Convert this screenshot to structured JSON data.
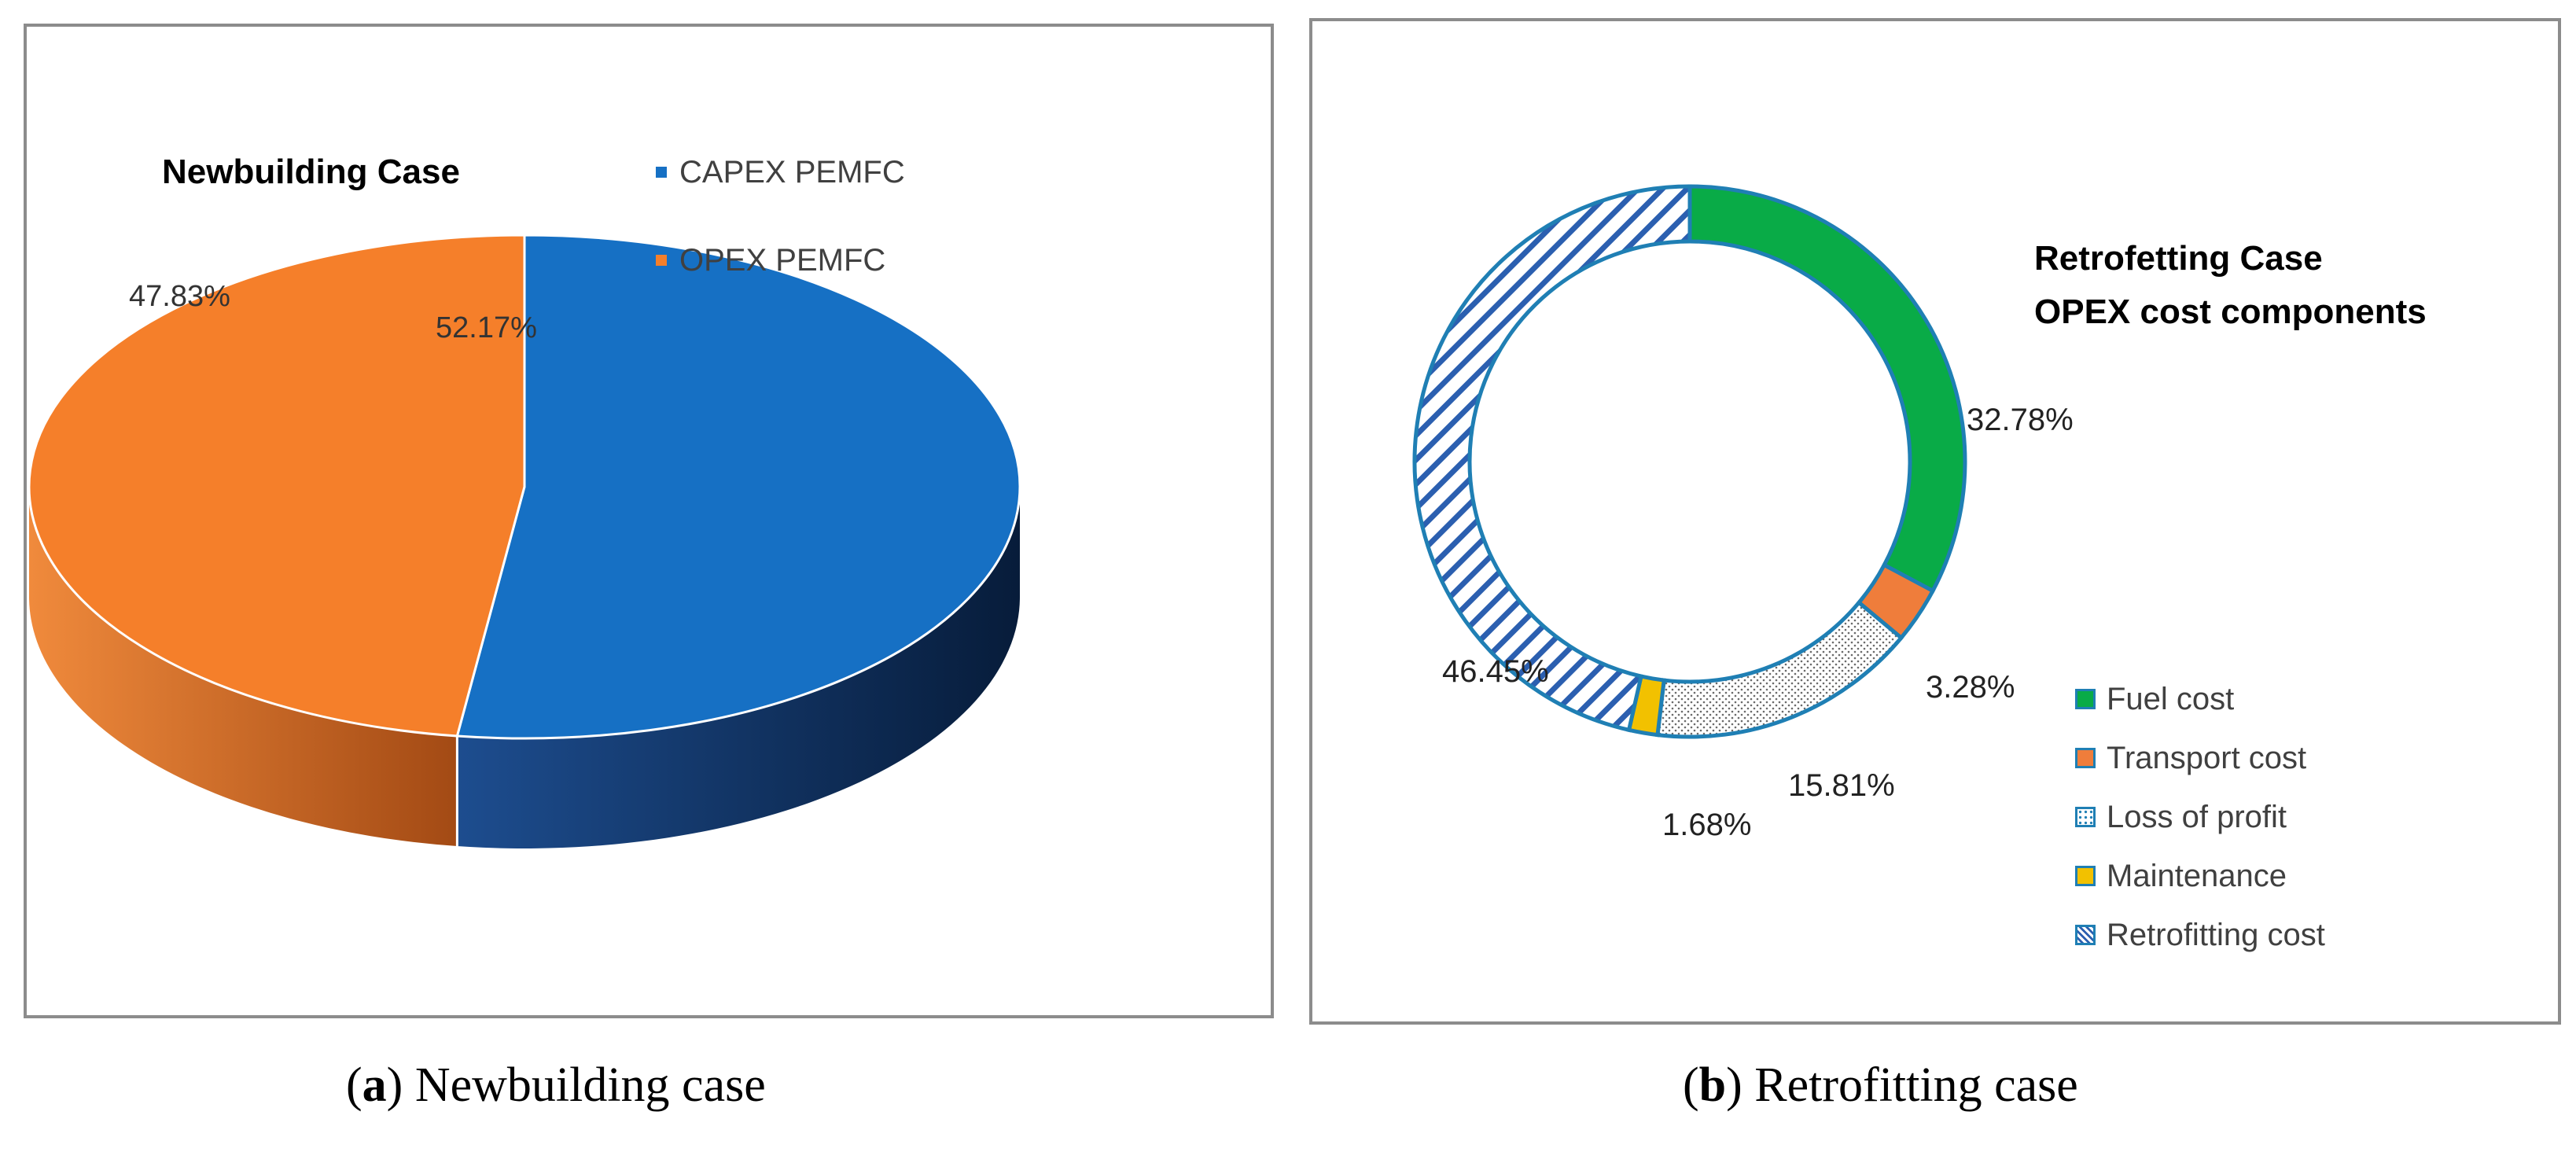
{
  "chart_data": [
    {
      "type": "pie",
      "title": "Newbuilding Case",
      "style": "3d",
      "series": [
        {
          "name": "CAPEX PEMFC",
          "value": 52.17,
          "label": "52.17%",
          "color": "#1670c4"
        },
        {
          "name": "OPEX PEMFC",
          "value": 47.83,
          "label": "47.83%",
          "color": "#f57f2a"
        }
      ],
      "legend_position": "top-right"
    },
    {
      "type": "pie",
      "title_lines": [
        "Retrofetting Case",
        "OPEX cost components"
      ],
      "style": "donut",
      "series": [
        {
          "name": "Fuel cost",
          "value": 32.78,
          "label": "32.78%",
          "color": "#09ab47",
          "pattern": "solid"
        },
        {
          "name": "Transport cost",
          "value": 3.28,
          "label": "3.28%",
          "color": "#ef7d3b",
          "pattern": "solid"
        },
        {
          "name": "Loss of profit",
          "value": 15.81,
          "label": "15.81%",
          "color": "#ffffff",
          "pattern": "dots"
        },
        {
          "name": "Maintenance",
          "value": 1.68,
          "label": "1.68%",
          "color": "#f2c100",
          "pattern": "solid"
        },
        {
          "name": "Retrofitting cost",
          "value": 46.45,
          "label": "46.45%",
          "color": "#ffffff",
          "pattern": "diagonal-stripes"
        }
      ],
      "legend_position": "bottom-right"
    }
  ],
  "captions": {
    "a_letter": "a",
    "a_text": "Newbuilding case",
    "b_letter": "b",
    "b_text": "Retrofitting case"
  },
  "colors": {
    "panel_border": "#8c8c8c",
    "donut_outline": "#1f7fb4",
    "stripe": "#2b5fb0",
    "capex_side": "#0f2d57",
    "opex_side": "#b4591c"
  }
}
